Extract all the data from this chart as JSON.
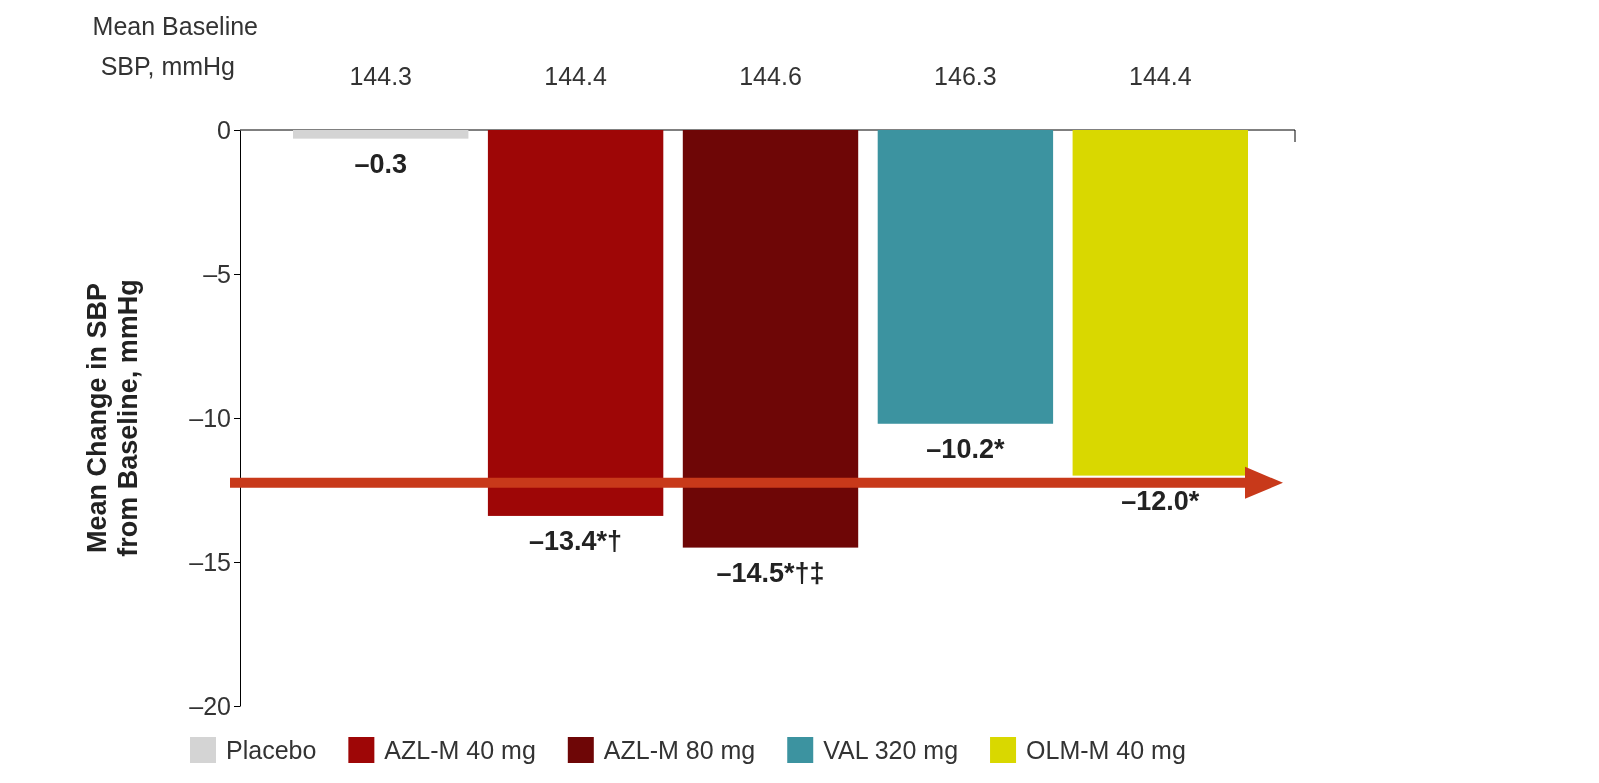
{
  "chart_data": {
    "type": "bar",
    "ylabel": "Mean Change in SBP from Baseline, mmHg",
    "categories": [
      null,
      null,
      null,
      null,
      null
    ],
    "series": [
      {
        "name": "Placebo",
        "color": "#d4d4d4",
        "values": [
          -0.3,
          null,
          null,
          null,
          null
        ],
        "value_labels": [
          "–0.3",
          null,
          null,
          null,
          null
        ]
      },
      {
        "name": "AZL-M 40 mg",
        "color": "#9e0606",
        "values": [
          null,
          -13.4,
          null,
          null,
          null
        ],
        "value_labels": [
          null,
          "–13.4*†",
          null,
          null,
          null
        ]
      },
      {
        "name": "AZL-M 80 mg",
        "color": "#6e0606",
        "values": [
          null,
          null,
          -14.5,
          null,
          null
        ],
        "value_labels": [
          null,
          null,
          "–14.5*†‡",
          null,
          null
        ]
      },
      {
        "name": "VAL 320 mg",
        "color": "#3c93a0",
        "values": [
          null,
          null,
          null,
          -10.2,
          null
        ],
        "value_labels": [
          null,
          null,
          null,
          "–10.2*",
          null
        ]
      },
      {
        "name": "OLM-M 40 mg",
        "color": "#d9d800",
        "values": [
          null,
          null,
          null,
          null,
          -12.0
        ],
        "value_labels": [
          null,
          null,
          null,
          null,
          "–12.0*"
        ]
      }
    ],
    "ylim": [
      -20,
      0
    ],
    "yticks": [
      {
        "value": 0,
        "label": "0"
      },
      {
        "value": -5,
        "label": "–5"
      },
      {
        "value": -10,
        "label": "–10"
      },
      {
        "value": -15,
        "label": "–15"
      },
      {
        "value": -20,
        "label": "–20"
      }
    ],
    "tick_labels": "y",
    "legend": "bottom",
    "grid": false,
    "annotations": [
      "Mean Baseline SBP, mmHg",
      "144.3",
      "144.4",
      "144.6",
      "146.3",
      "144.4"
    ]
  }
}
